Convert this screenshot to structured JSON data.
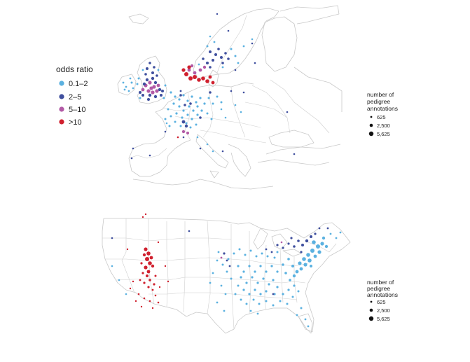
{
  "figure": {
    "colors": {
      "0.1–2": "#5bb1e0",
      "2–5": "#3f4f9e",
      "5–10": "#b25aa6",
      ">10": "#d0202e",
      "outline": "#c9c9c9"
    },
    "europe": {
      "region": "Europe",
      "legend": {
        "title": "odds ratio",
        "items": [
          {
            "label": "0.1–2",
            "color": "#5bb1e0"
          },
          {
            "label": "2–5",
            "color": "#3f4f9e"
          },
          {
            "label": "5–10",
            "color": "#b25aa6"
          },
          {
            "label": ">10",
            "color": "#d0202e"
          }
        ]
      },
      "size_legend": {
        "title_lines": [
          "number of",
          "pedigree",
          "annotations"
        ],
        "items": [
          "625",
          "2,500",
          "5,625"
        ]
      }
    },
    "north_america": {
      "region": "United States",
      "size_legend": {
        "title_lines": [
          "number of",
          "pedigree",
          "annotations"
        ],
        "items": [
          "625",
          "2,500",
          "5,625"
        ]
      }
    }
  }
}
